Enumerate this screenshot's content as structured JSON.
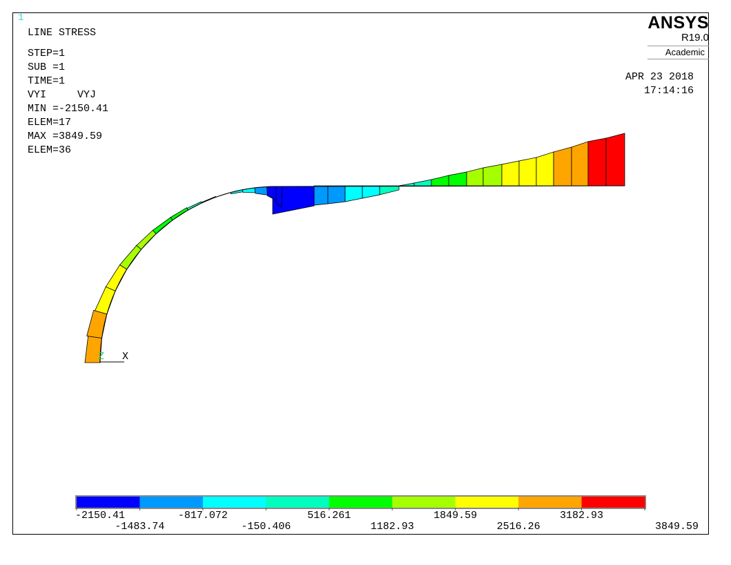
{
  "window_number": "1",
  "title": "LINE STRESS",
  "info_lines": [
    "STEP=1",
    "SUB =1",
    "TIME=1",
    "VYI     VYJ",
    "MIN =-2150.41",
    "ELEM=17",
    "MAX =3849.59",
    "ELEM=36"
  ],
  "date": "APR 23 2018",
  "time": "17:14:16",
  "brand": {
    "name": "ANSYS",
    "version": "R19.0",
    "edition": "Academic"
  },
  "triad": {
    "z_label": "Z",
    "x_label": "X"
  },
  "legend": {
    "colors": [
      "#0000ff",
      "#0099ff",
      "#00ffff",
      "#00ffbf",
      "#00ff00",
      "#a6ff00",
      "#ffff00",
      "#ffa500",
      "#ff0000"
    ],
    "labels_top": [
      "-2150.41",
      "-817.072",
      "516.261",
      "1849.59",
      "3182.93"
    ],
    "labels_bottom": [
      "-1483.74",
      "-150.406",
      "1182.93",
      "2516.26",
      "3849.59"
    ]
  },
  "chart_data": {
    "type": "contour-legend",
    "title": "LINE STRESS",
    "min": -2150.41,
    "max": 3849.59,
    "min_element": 17,
    "max_element": 36,
    "levels": [
      -2150.41,
      -1483.74,
      -817.072,
      -150.406,
      516.261,
      1182.93,
      1849.59,
      2516.26,
      3182.93,
      3849.59
    ]
  }
}
